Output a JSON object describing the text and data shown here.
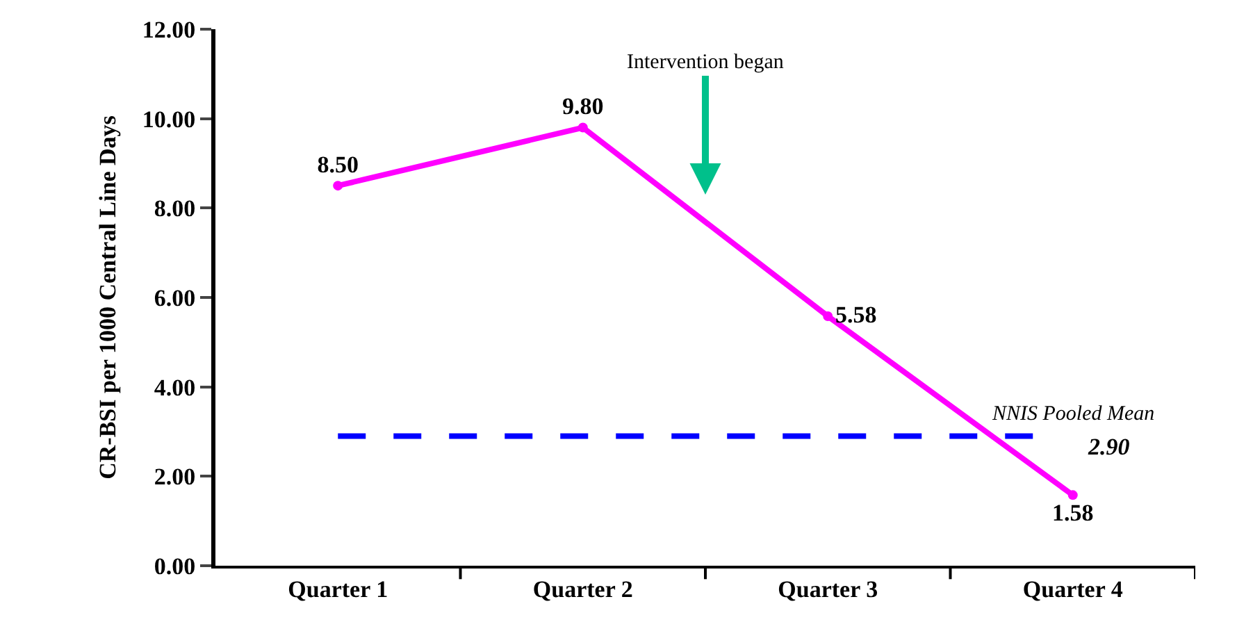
{
  "chart_data": {
    "type": "line",
    "ylabel": "CR-BSI per 1000 Central Line Days",
    "categories": [
      "Quarter 1",
      "Quarter 2",
      "Quarter 3",
      "Quarter 4"
    ],
    "series": [
      {
        "color": "#ff00ff",
        "values": [
          8.5,
          9.8,
          5.58,
          1.58
        ],
        "value_labels": [
          "8.50",
          "9.80",
          "5.58",
          "1.58"
        ]
      }
    ],
    "ylim": [
      0,
      12
    ],
    "yticks": [
      {
        "value": 0,
        "label": "0.00"
      },
      {
        "value": 2,
        "label": "2.00"
      },
      {
        "value": 4,
        "label": "4.00"
      },
      {
        "value": 6,
        "label": "6.00"
      },
      {
        "value": 8,
        "label": "8.00"
      },
      {
        "value": 10,
        "label": "10.00"
      },
      {
        "value": 12,
        "label": "12.00"
      }
    ],
    "ref_lines": [
      {
        "axis": "y",
        "value": 2.9,
        "label": "NNIS Pooled Mean",
        "color": "#0000ff",
        "line_style": "dashed"
      }
    ],
    "annotations": [
      "2.90",
      "Intervention began"
    ],
    "legend": false,
    "marker": "circle",
    "line_style": "solid"
  }
}
